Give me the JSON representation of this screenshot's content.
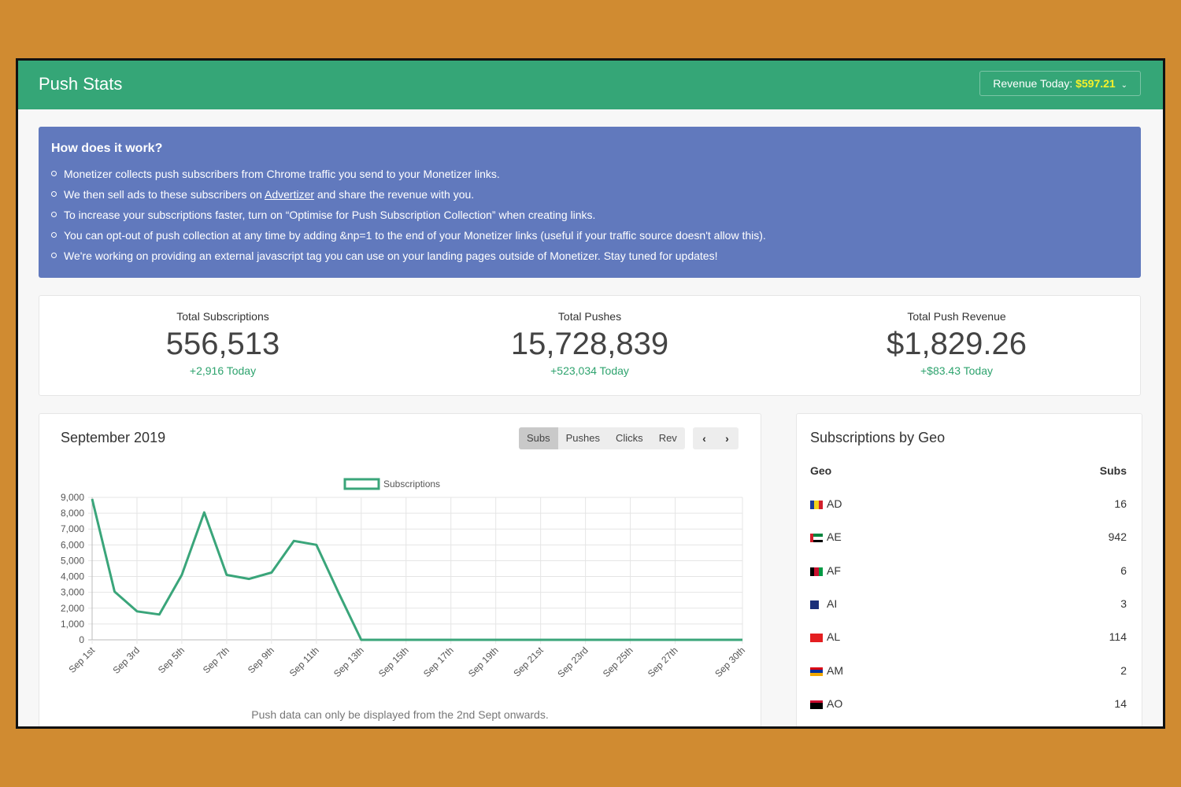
{
  "header": {
    "title": "Push Stats",
    "revenue_label": "Revenue Today:",
    "revenue_amount": "$597.21"
  },
  "info": {
    "heading": "How does it work?",
    "items": [
      {
        "pre": "Monetizer collects push subscribers from Chrome traffic you send to your Monetizer links.",
        "link": "",
        "post": ""
      },
      {
        "pre": "We then sell ads to these subscribers on ",
        "link": "Advertizer",
        "post": " and share the revenue with you."
      },
      {
        "pre": "To increase your subscriptions faster, turn on “Optimise for Push Subscription Collection” when creating links.",
        "link": "",
        "post": ""
      },
      {
        "pre": "You can opt-out of push collection at any time by adding &np=1 to the end of your Monetizer links (useful if your traffic source doesn't allow this).",
        "link": "",
        "post": ""
      },
      {
        "pre": "We're working on providing an external javascript tag you can use on your landing pages outside of Monetizer. Stay tuned for updates!",
        "link": "",
        "post": ""
      }
    ]
  },
  "stats": [
    {
      "label": "Total Subscriptions",
      "value": "556,513",
      "delta": "+2,916 Today"
    },
    {
      "label": "Total Pushes",
      "value": "15,728,839",
      "delta": "+523,034 Today"
    },
    {
      "label": "Total Push Revenue",
      "value": "$1,829.26",
      "delta": "+$83.43 Today"
    }
  ],
  "chart_panel": {
    "month": "September 2019",
    "tabs": [
      "Subs",
      "Pushes",
      "Clicks",
      "Rev"
    ],
    "active_tab": "Subs",
    "prev_icon": "chevron-left-icon",
    "next_icon": "chevron-right-icon",
    "note": "Push data can only be displayed from the 2nd Sept onwards."
  },
  "chart_data": {
    "type": "line",
    "title": "",
    "xlabel": "",
    "ylabel": "",
    "legend": "top",
    "grid": true,
    "color": "#3aa57a",
    "ylim": [
      0,
      9000
    ],
    "yticks": [
      0,
      1000,
      2000,
      3000,
      4000,
      5000,
      6000,
      7000,
      8000,
      9000
    ],
    "ytick_labels": [
      "0",
      "1,000",
      "2,000",
      "3,000",
      "4,000",
      "5,000",
      "6,000",
      "7,000",
      "8,000",
      "9,000"
    ],
    "x": [
      "Sep 1st",
      "Sep 2nd",
      "Sep 3rd",
      "Sep 4th",
      "Sep 5th",
      "Sep 6th",
      "Sep 7th",
      "Sep 8th",
      "Sep 9th",
      "Sep 10th",
      "Sep 11th",
      "Sep 12th",
      "Sep 13th",
      "Sep 14th",
      "Sep 15th",
      "Sep 16th",
      "Sep 17th",
      "Sep 18th",
      "Sep 19th",
      "Sep 20th",
      "Sep 21st",
      "Sep 22nd",
      "Sep 23rd",
      "Sep 24th",
      "Sep 25th",
      "Sep 26th",
      "Sep 27th",
      "Sep 28th",
      "Sep 29th",
      "Sep 30th"
    ],
    "xtick_labels_shown": [
      "Sep 1st",
      "Sep 3rd",
      "Sep 5th",
      "Sep 7th",
      "Sep 9th",
      "Sep 11th",
      "Sep 13th",
      "Sep 15th",
      "Sep 17th",
      "Sep 19th",
      "Sep 21st",
      "Sep 23rd",
      "Sep 25th",
      "Sep 27th",
      "Sep 30th"
    ],
    "series": [
      {
        "name": "Subscriptions",
        "values": [
          8900,
          3050,
          1800,
          1600,
          4100,
          8050,
          4100,
          3850,
          4250,
          6250,
          6000,
          2950,
          0,
          0,
          0,
          0,
          0,
          0,
          0,
          0,
          0,
          0,
          0,
          0,
          0,
          0,
          0,
          0,
          0,
          0
        ]
      }
    ]
  },
  "geo": {
    "title": "Subscriptions by Geo",
    "col_geo": "Geo",
    "col_subs": "Subs",
    "rows": [
      {
        "code": "AD",
        "subs": "16",
        "flag": [
          "#1e3c9a",
          "#f4d21c",
          "#d21f2c"
        ],
        "dir": "v"
      },
      {
        "code": "AE",
        "subs": "942",
        "flag": [
          "#00843d",
          "#ffffff",
          "#000000"
        ],
        "dir": "h",
        "hoist": "#d21f2c"
      },
      {
        "code": "AF",
        "subs": "6",
        "flag": [
          "#000000",
          "#c8102e",
          "#009a44"
        ],
        "dir": "v"
      },
      {
        "code": "AI",
        "subs": "3",
        "flag": [
          "#1a2f7a",
          "#1a2f7a",
          "#ffffff"
        ],
        "dir": "v"
      },
      {
        "code": "AL",
        "subs": "114",
        "flag": [
          "#e41e20",
          "#e41e20",
          "#e41e20"
        ],
        "dir": "v"
      },
      {
        "code": "AM",
        "subs": "2",
        "flag": [
          "#d90012",
          "#0033a0",
          "#f2a800"
        ],
        "dir": "h"
      },
      {
        "code": "AO",
        "subs": "14",
        "flag": [
          "#cc092f",
          "#000000",
          "#000000"
        ],
        "dir": "h"
      }
    ]
  }
}
